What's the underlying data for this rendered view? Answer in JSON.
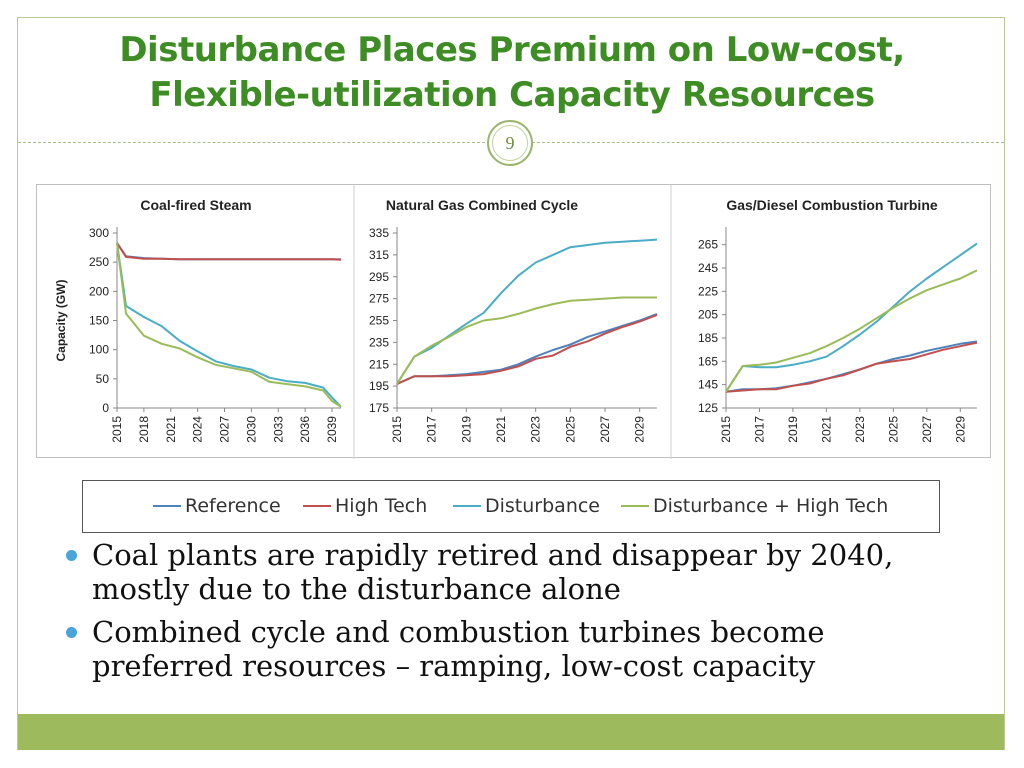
{
  "slide": {
    "title_line1": "Disturbance Places Premium on Low-cost,",
    "title_line2": "Flexible-utilization Capacity Resources",
    "slide_number": "9",
    "title_color": "#3d8c24",
    "footer_color": "#9dba5c"
  },
  "legend": [
    {
      "name": "Reference",
      "color": "#4f81bd"
    },
    {
      "name": "High Tech",
      "color": "#c0504d"
    },
    {
      "name": "Disturbance",
      "color": "#4bacc6"
    },
    {
      "name": "Disturbance + High Tech",
      "color": "#9bbb59"
    }
  ],
  "bullets": [
    {
      "text": "Coal plants are rapidly retired and disappear by 2040,",
      "text2": "mostly due to the disturbance alone"
    },
    {
      "text": "Combined cycle and combustion turbines become",
      "text2": "preferred resources – ramping, low-cost capacity"
    }
  ],
  "chart_data": [
    {
      "type": "line",
      "title": "Coal-fired Steam",
      "ylabel": "Capacity (GW)",
      "xlabel": "",
      "ylim": [
        0,
        300
      ],
      "yticks": [
        0,
        50,
        100,
        150,
        200,
        250,
        300
      ],
      "xlim": [
        2015,
        2040
      ],
      "xticks": [
        2015,
        2018,
        2021,
        2024,
        2027,
        2030,
        2033,
        2036,
        2039
      ],
      "x": [
        2015,
        2016,
        2018,
        2020,
        2022,
        2024,
        2026,
        2028,
        2030,
        2032,
        2034,
        2036,
        2038,
        2039,
        2040
      ],
      "series": [
        {
          "name": "Reference",
          "color": "#4f81bd",
          "values": [
            283,
            260,
            257,
            256,
            255,
            255,
            255,
            255,
            255,
            255,
            255,
            255,
            255,
            255,
            255
          ]
        },
        {
          "name": "High Tech",
          "color": "#c0504d",
          "values": [
            283,
            259,
            256,
            256,
            255,
            255,
            255,
            255,
            255,
            255,
            255,
            255,
            255,
            255,
            254
          ]
        },
        {
          "name": "Disturbance",
          "color": "#4bacc6",
          "values": [
            283,
            175,
            156,
            140,
            115,
            97,
            80,
            72,
            66,
            52,
            46,
            43,
            35,
            18,
            2
          ]
        },
        {
          "name": "Disturbance + High Tech",
          "color": "#9bbb59",
          "values": [
            283,
            162,
            124,
            110,
            102,
            87,
            74,
            68,
            62,
            45,
            41,
            37,
            30,
            12,
            2
          ]
        }
      ]
    },
    {
      "type": "line",
      "title": "Natural Gas Combined Cycle",
      "ylabel": "",
      "xlabel": "",
      "ylim": [
        175,
        335
      ],
      "yticks": [
        175,
        195,
        215,
        235,
        255,
        275,
        295,
        315,
        335
      ],
      "xlim": [
        2015,
        2030
      ],
      "xticks": [
        2015,
        2017,
        2019,
        2021,
        2023,
        2025,
        2027,
        2029
      ],
      "x": [
        2015,
        2016,
        2017,
        2018,
        2019,
        2020,
        2021,
        2022,
        2023,
        2024,
        2025,
        2026,
        2027,
        2028,
        2029,
        2030
      ],
      "series": [
        {
          "name": "Reference",
          "color": "#4f81bd",
          "values": [
            197,
            204,
            204,
            205,
            206,
            208,
            210,
            215,
            222,
            228,
            233,
            240,
            245,
            250,
            255,
            261
          ]
        },
        {
          "name": "High Tech",
          "color": "#c0504d",
          "values": [
            197,
            204,
            204,
            204,
            205,
            206,
            209,
            213,
            220,
            223,
            231,
            236,
            243,
            249,
            254,
            260
          ]
        },
        {
          "name": "Disturbance",
          "color": "#4bacc6",
          "values": [
            197,
            222,
            230,
            241,
            252,
            262,
            280,
            296,
            308,
            315,
            322,
            324,
            326,
            327,
            328,
            329
          ]
        },
        {
          "name": "Disturbance + High Tech",
          "color": "#9bbb59",
          "values": [
            197,
            222,
            232,
            240,
            249,
            255,
            257,
            261,
            266,
            270,
            273,
            274,
            275,
            276,
            276,
            276
          ]
        }
      ]
    },
    {
      "type": "line",
      "title": "Gas/Diesel Combustion Turbine",
      "ylabel": "",
      "xlabel": "",
      "ylim": [
        125,
        275
      ],
      "yticks": [
        125,
        145,
        165,
        185,
        205,
        225,
        245,
        265
      ],
      "xlim": [
        2015,
        2030
      ],
      "xticks": [
        2015,
        2017,
        2019,
        2021,
        2023,
        2025,
        2027,
        2029
      ],
      "x": [
        2015,
        2016,
        2017,
        2018,
        2019,
        2020,
        2021,
        2022,
        2023,
        2024,
        2025,
        2026,
        2027,
        2028,
        2029,
        2030
      ],
      "series": [
        {
          "name": "Reference",
          "color": "#4f81bd",
          "values": [
            139,
            141,
            141,
            142,
            144,
            147,
            150,
            154,
            158,
            163,
            167,
            170,
            174,
            177,
            180,
            182
          ]
        },
        {
          "name": "High Tech",
          "color": "#c0504d",
          "values": [
            139,
            140,
            141,
            141,
            144,
            146,
            150,
            153,
            158,
            163,
            165,
            167,
            171,
            175,
            178,
            181
          ]
        },
        {
          "name": "Disturbance",
          "color": "#4bacc6",
          "values": [
            139,
            161,
            160,
            160,
            162,
            165,
            169,
            178,
            188,
            199,
            212,
            225,
            236,
            246,
            256,
            266
          ]
        },
        {
          "name": "Disturbance + High Tech",
          "color": "#9bbb59",
          "values": [
            139,
            161,
            162,
            164,
            168,
            172,
            178,
            185,
            193,
            202,
            211,
            219,
            226,
            231,
            236,
            243
          ]
        }
      ]
    }
  ]
}
